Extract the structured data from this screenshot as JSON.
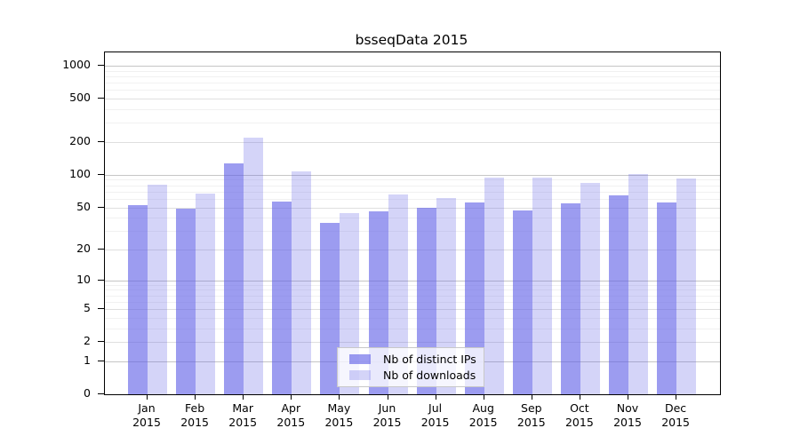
{
  "chart_data": {
    "type": "bar",
    "title": "bsseqData 2015",
    "categories": [
      "Jan",
      "Feb",
      "Mar",
      "Apr",
      "May",
      "Jun",
      "Jul",
      "Aug",
      "Sep",
      "Oct",
      "Nov",
      "Dec"
    ],
    "year_label": "2015",
    "series": [
      {
        "name": "Nb of distinct IPs",
        "color": "rgba(95,95,230,0.62)",
        "values": [
          52,
          49,
          128,
          57,
          36,
          46,
          50,
          55,
          47,
          54,
          65,
          55
        ]
      },
      {
        "name": "Nb of downloads",
        "color": "rgba(95,95,230,0.27)",
        "values": [
          81,
          67,
          220,
          108,
          44,
          66,
          61,
          94,
          95,
          84,
          101,
          92
        ]
      }
    ],
    "y_axis": {
      "scale": "log1p",
      "ticks": [
        0,
        1,
        2,
        5,
        10,
        20,
        50,
        100,
        200,
        500,
        1000
      ],
      "minor_ticks": [
        3,
        4,
        6,
        7,
        8,
        9,
        30,
        40,
        60,
        70,
        80,
        90,
        300,
        400,
        600,
        700,
        800,
        900
      ],
      "range": [
        0,
        1000
      ]
    },
    "grid": true,
    "legend_position": "bottom-center-inside",
    "colors": {
      "axis": "#000000",
      "grid_major": "#c6c6c6",
      "grid_mid": "#dfdfdf",
      "grid_minor": "#f1f1f1",
      "legend_border": "#c8c8c8"
    }
  }
}
